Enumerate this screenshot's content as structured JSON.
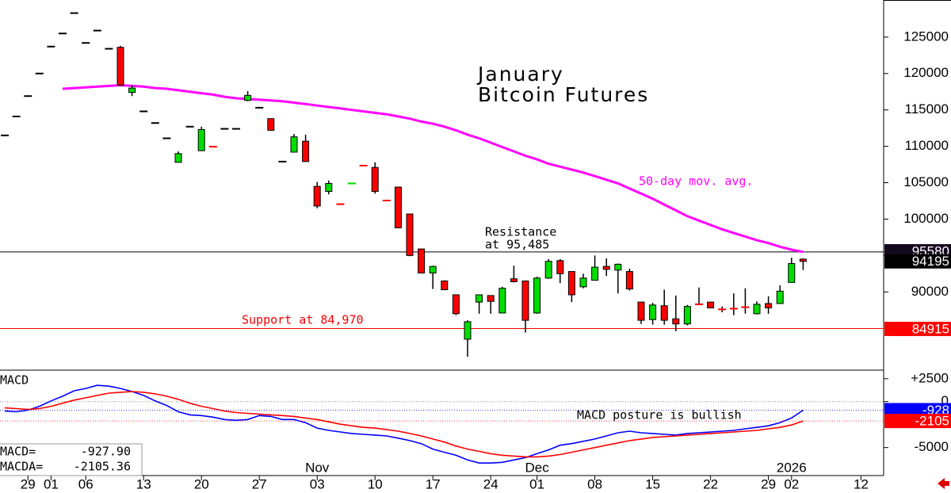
{
  "chart_data": {
    "type": "candlestick",
    "title_lines": [
      "January",
      "Bitcoin Futures"
    ],
    "categories": [
      null,
      null,
      "29",
      null,
      "01",
      null,
      null,
      "06",
      null,
      null,
      null,
      null,
      "13",
      null,
      null,
      null,
      null,
      "20",
      null,
      null,
      null,
      null,
      "27",
      null,
      null,
      null,
      null,
      "03",
      null,
      null,
      null,
      null,
      "10",
      null,
      null,
      null,
      null,
      "17",
      null,
      null,
      null,
      null,
      "24",
      null,
      null,
      null,
      "01",
      null,
      null,
      null,
      null,
      "08",
      null,
      null,
      null,
      null,
      "15",
      null,
      null,
      null,
      null,
      "22",
      null,
      null,
      null,
      null,
      "29",
      null,
      "02",
      null,
      null,
      null,
      null,
      null,
      "12"
    ],
    "month_categories": [
      null,
      null,
      null,
      null,
      null,
      null,
      null,
      null,
      null,
      null,
      null,
      null,
      null,
      null,
      null,
      null,
      null,
      null,
      null,
      null,
      null,
      null,
      null,
      null,
      null,
      null,
      null,
      "Nov",
      null,
      null,
      null,
      null,
      null,
      null,
      null,
      null,
      null,
      null,
      null,
      null,
      null,
      null,
      null,
      null,
      null,
      null,
      "Dec",
      null,
      null,
      null,
      null,
      null,
      null,
      null,
      null,
      null,
      null,
      null,
      null,
      null,
      null,
      null,
      null,
      null,
      null,
      null,
      null,
      null,
      "2026",
      null,
      null,
      null,
      null,
      null,
      null
    ],
    "open": [
      111500,
      114100,
      116900,
      120000,
      123700,
      125500,
      128300,
      124200,
      125900,
      123400,
      123600,
      117400,
      114800,
      113200,
      111100,
      107800,
      112700,
      109400,
      109950,
      112400,
      112400,
      116300,
      115300,
      113800,
      107900,
      109200,
      110700,
      104500,
      103800,
      102050,
      104850,
      107350,
      107100,
      102550,
      104400,
      100700,
      95900,
      92600,
      91500,
      89600,
      83500,
      88600,
      89500,
      87100,
      91800,
      91500,
      87100,
      91900,
      94300,
      92800,
      90700,
      91600,
      93500,
      93000,
      92800,
      88600,
      86200,
      88100,
      86300,
      85600,
      88300,
      88600,
      87600,
      87700,
      87900,
      87000,
      88400,
      88400,
      91300,
      94500,
      null,
      null,
      null,
      null,
      null
    ],
    "high": [
      111500,
      114100,
      116900,
      120000,
      123700,
      125500,
      128300,
      124200,
      125900,
      123400,
      123800,
      118400,
      114800,
      113200,
      111100,
      109300,
      112700,
      112700,
      109950,
      112400,
      112400,
      117600,
      115300,
      113800,
      107900,
      111700,
      111600,
      105100,
      105300,
      102050,
      104900,
      107350,
      107800,
      102550,
      104400,
      100700,
      95900,
      93600,
      91600,
      89600,
      86100,
      89600,
      89500,
      90700,
      93600,
      91500,
      92100,
      94500,
      94500,
      92800,
      92500,
      95000,
      94600,
      93900,
      93200,
      88600,
      88500,
      90300,
      89500,
      88200,
      90600,
      88600,
      88000,
      89800,
      90500,
      88700,
      89400,
      90900,
      94700,
      94600,
      null,
      null,
      null,
      null,
      null
    ],
    "low": [
      111500,
      114100,
      116900,
      120000,
      123700,
      125500,
      128300,
      124200,
      125900,
      123400,
      118300,
      116900,
      114800,
      113200,
      111100,
      107800,
      112700,
      109400,
      109900,
      112400,
      112400,
      116200,
      115300,
      112200,
      107900,
      109200,
      107900,
      101500,
      103400,
      102000,
      104850,
      107300,
      103500,
      102500,
      98800,
      94900,
      92600,
      90400,
      90300,
      86800,
      81100,
      87000,
      87000,
      87100,
      91300,
      84400,
      87000,
      91800,
      91200,
      88600,
      90500,
      91600,
      92200,
      89800,
      90200,
      85600,
      85500,
      85500,
      84600,
      85400,
      88200,
      87800,
      87200,
      86800,
      87000,
      86900,
      87000,
      88400,
      91300,
      93000,
      null,
      null,
      null,
      null,
      null
    ],
    "close": [
      111500,
      114100,
      116900,
      120000,
      123700,
      125500,
      128300,
      124200,
      125900,
      123400,
      118400,
      118000,
      114800,
      113200,
      111100,
      109000,
      112700,
      112300,
      109900,
      112400,
      112400,
      117000,
      115300,
      112200,
      107900,
      111300,
      107900,
      101800,
      104900,
      102000,
      104900,
      107300,
      103800,
      102500,
      98800,
      95000,
      92600,
      93500,
      90300,
      87000,
      85900,
      89600,
      88700,
      90500,
      91400,
      86100,
      91900,
      94200,
      92500,
      89600,
      91900,
      93400,
      93100,
      93800,
      90400,
      86100,
      88200,
      86100,
      85600,
      88000,
      88200,
      87800,
      87500,
      87600,
      87800,
      88300,
      87800,
      90100,
      93900,
      94195,
      null,
      null,
      null,
      null,
      null
    ],
    "up_color": "#00dd00",
    "down_color": "#ff0000",
    "flat_color": "#000000",
    "moving_average": {
      "name": "50-day mov. avg.",
      "color": "#ff00ff",
      "values": [
        null,
        null,
        null,
        null,
        null,
        117900,
        118000,
        118100,
        118200,
        118300,
        118400,
        118300,
        118200,
        118000,
        117900,
        117700,
        117500,
        117300,
        117100,
        116800,
        116600,
        116500,
        116400,
        116300,
        116200,
        116000,
        115800,
        115600,
        115400,
        115200,
        115000,
        114800,
        114600,
        114400,
        114100,
        113800,
        113400,
        113100,
        112700,
        112200,
        111600,
        111100,
        110500,
        109900,
        109300,
        108700,
        108200,
        107600,
        107200,
        106800,
        106400,
        105900,
        105400,
        104900,
        104200,
        103500,
        102800,
        102000,
        101200,
        100400,
        99800,
        99200,
        98600,
        98100,
        97600,
        97100,
        96700,
        96200,
        95800,
        95500,
        null,
        null,
        null,
        null,
        null
      ]
    },
    "ylim": [
      79250,
      130100
    ],
    "yticks": [
      90000,
      95000,
      100000,
      105000,
      110000,
      115000,
      120000,
      125000
    ],
    "reference_lines": [
      {
        "value": 95485,
        "label_lines": [
          "Resistance",
          "at 95,485"
        ],
        "color": "#000000"
      },
      {
        "value": 84970,
        "label_lines": [
          "Support at 84,970"
        ],
        "color": "#ff0000"
      }
    ],
    "price_tags": [
      {
        "value": 95580,
        "color": "#14081e"
      },
      {
        "value": 94195,
        "color": "#000000"
      },
      {
        "value": 84915,
        "color": "#ff0000"
      }
    ],
    "macd": {
      "title": "MACD",
      "annotation": "MACD posture is bullish",
      "y2lim": [
        -8050,
        3430
      ],
      "y2ticks": [
        {
          "value": 2500,
          "label": "+2500"
        },
        0,
        -5000
      ],
      "series": [
        {
          "name": "MACD",
          "color": "#0000ff",
          "axis": "y2",
          "values": [
            -1020,
            -1100,
            -930,
            -510,
            80,
            590,
            1190,
            1440,
            1780,
            1690,
            1440,
            1100,
            680,
            80,
            -420,
            -1100,
            -1440,
            -1520,
            -1690,
            -1950,
            -2030,
            -1950,
            -1520,
            -1610,
            -1950,
            -1950,
            -2290,
            -2880,
            -3130,
            -3300,
            -3470,
            -3560,
            -3640,
            -3730,
            -3980,
            -4240,
            -4570,
            -5170,
            -5510,
            -5840,
            -6350,
            -6690,
            -6690,
            -6610,
            -6350,
            -6100,
            -5670,
            -5250,
            -4740,
            -4570,
            -4320,
            -4070,
            -3730,
            -3390,
            -3220,
            -3390,
            -3470,
            -3560,
            -3640,
            -3470,
            -3390,
            -3300,
            -3220,
            -3130,
            -2960,
            -2800,
            -2630,
            -2290,
            -1780,
            -927.9,
            null,
            null,
            null,
            null,
            null
          ]
        },
        {
          "name": "MACDA",
          "color": "#ff0000",
          "axis": "y2",
          "values": [
            -680,
            -760,
            -850,
            -760,
            -510,
            -170,
            170,
            420,
            680,
            930,
            1020,
            1100,
            1020,
            850,
            590,
            250,
            -170,
            -510,
            -760,
            -1020,
            -1190,
            -1270,
            -1360,
            -1440,
            -1520,
            -1610,
            -1780,
            -1950,
            -2200,
            -2460,
            -2630,
            -2800,
            -2880,
            -3050,
            -3220,
            -3470,
            -3730,
            -4070,
            -4400,
            -4830,
            -5170,
            -5420,
            -5670,
            -5840,
            -5930,
            -6010,
            -6010,
            -5930,
            -5760,
            -5510,
            -5250,
            -5000,
            -4740,
            -4490,
            -4240,
            -4070,
            -3900,
            -3810,
            -3730,
            -3640,
            -3560,
            -3470,
            -3390,
            -3300,
            -3220,
            -3130,
            -2960,
            -2800,
            -2540,
            -2105.36,
            null,
            null,
            null,
            null,
            null
          ]
        }
      ],
      "readouts": [
        {
          "label": "MACD=",
          "value_label": "-927.90"
        },
        {
          "label": "MACDA=",
          "value_label": "-2105.36"
        }
      ],
      "tags": [
        {
          "value": -928,
          "color": "#0000ff"
        },
        {
          "value": -2105,
          "color": "#ff0000"
        }
      ]
    }
  }
}
